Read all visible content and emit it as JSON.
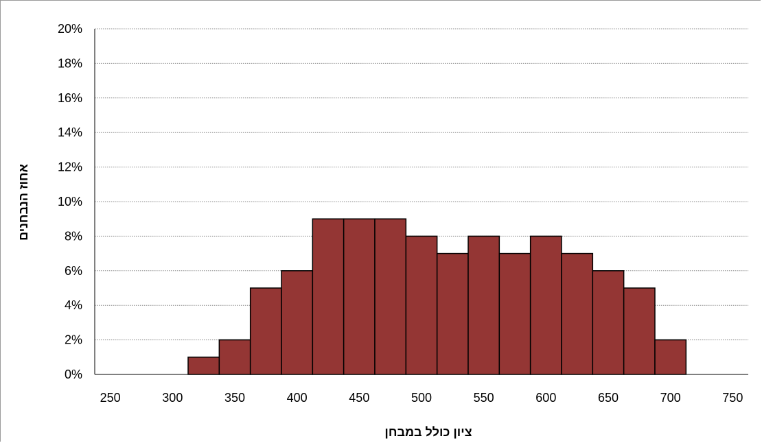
{
  "chart_data": {
    "type": "bar",
    "title": "",
    "xlabel": "ציון כולל במבחן",
    "ylabel": "אחוז הנבחנים",
    "x_ticks": [
      "250",
      "300",
      "350",
      "400",
      "450",
      "500",
      "550",
      "600",
      "650",
      "700",
      "750"
    ],
    "y_ticks": [
      "0%",
      "2%",
      "4%",
      "6%",
      "8%",
      "10%",
      "12%",
      "14%",
      "16%",
      "18%",
      "20%"
    ],
    "xlim": [
      237.5,
      762.5
    ],
    "ylim": [
      0,
      20
    ],
    "bin_width": 25,
    "categories": [
      325,
      350,
      375,
      400,
      425,
      450,
      475,
      500,
      525,
      550,
      575,
      600,
      625,
      650,
      675,
      700
    ],
    "values": [
      1,
      2,
      5,
      6,
      9,
      9,
      9,
      8,
      7,
      8,
      7,
      8,
      7,
      6,
      5,
      2
    ],
    "bar_labels": [
      "1",
      "2",
      "5",
      "6",
      "9",
      "9",
      "9",
      "8",
      "7",
      "8",
      "7",
      "8",
      "7",
      "6",
      "5",
      "2"
    ],
    "units": "%",
    "grid": true,
    "legend": "none",
    "colors": {
      "bar_fill": "#943634",
      "bar_stroke": "#000000",
      "grid": "#8c8c8c",
      "axis": "#000000"
    }
  }
}
